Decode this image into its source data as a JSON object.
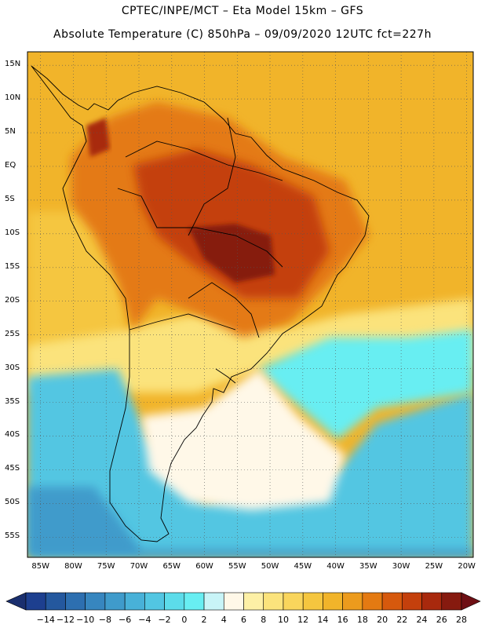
{
  "header": {
    "line1": "CPTEC/INPE/MCT –  Eta Model 15km – GFS",
    "line2": "Absolute Temperature (C) 850hPa – 09/09/2020 12UTC fct=227h"
  },
  "map": {
    "lat_labels": [
      "15N",
      "10N",
      "5N",
      "EQ",
      "5S",
      "10S",
      "15S",
      "20S",
      "25S",
      "30S",
      "35S",
      "40S",
      "45S",
      "50S",
      "55S"
    ],
    "lon_labels": [
      "85W",
      "80W",
      "75W",
      "70W",
      "65W",
      "60W",
      "55W",
      "50W",
      "45W",
      "40W",
      "35W",
      "30W",
      "25W",
      "20W"
    ],
    "lat_values": [
      15,
      10,
      5,
      0,
      -5,
      -10,
      -15,
      -20,
      -25,
      -30,
      -35,
      -40,
      -45,
      -50,
      -55
    ],
    "lon_values": [
      -85,
      -80,
      -75,
      -70,
      -65,
      -60,
      -55,
      -50,
      -45,
      -40,
      -35,
      -30,
      -25,
      -20
    ]
  },
  "colorbar": {
    "labels": [
      "-14",
      "-12",
      "-10",
      "-8",
      "-6",
      "-4",
      "-2",
      "0",
      "2",
      "4",
      "6",
      "8",
      "10",
      "12",
      "14",
      "16",
      "18",
      "20",
      "22",
      "24",
      "26",
      "28"
    ],
    "colors": [
      "#1d3f8f",
      "#24589e",
      "#2d6fb0",
      "#3786bf",
      "#3f9bcb",
      "#48b1d8",
      "#52c6e2",
      "#5cdcea",
      "#68eef2",
      "#c8f4f7",
      "#fff8e8",
      "#fdf0a6",
      "#fbe37c",
      "#f9d55c",
      "#f5c63f",
      "#f1b42a",
      "#ec9b1d",
      "#e47a12",
      "#d6590d",
      "#c4400c",
      "#a8290d",
      "#861a0f"
    ],
    "low_arrow_color": "#1a2f6e",
    "high_arrow_color": "#6e0f14"
  },
  "colors": {
    "ocean_cold_deep": "#2d6fb0",
    "ocean_cyan": "#52c6e2",
    "ocean_light": "#68eef2",
    "pale": "#fff8e8",
    "yellow": "#fbe37c",
    "orange": "#f1b42a",
    "hot": "#c4400c",
    "hottest": "#861a0f"
  }
}
